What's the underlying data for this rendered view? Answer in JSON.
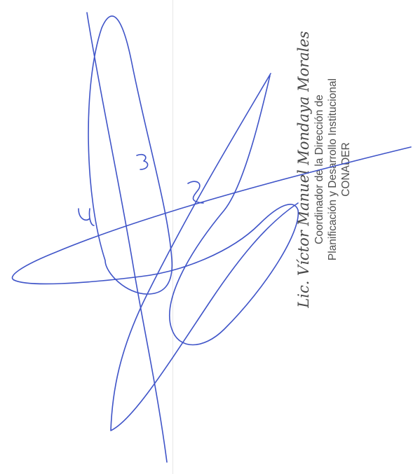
{
  "signature_block": {
    "name": "Lic. Víctor Manuel Mondaya Morales",
    "line1": "Coordinador de la Dirección de",
    "line2": "Planificación y Desarrollo Institucional",
    "line3": "CONADER"
  },
  "handwritten_signature": {
    "ink_color": "#3f54c8"
  }
}
